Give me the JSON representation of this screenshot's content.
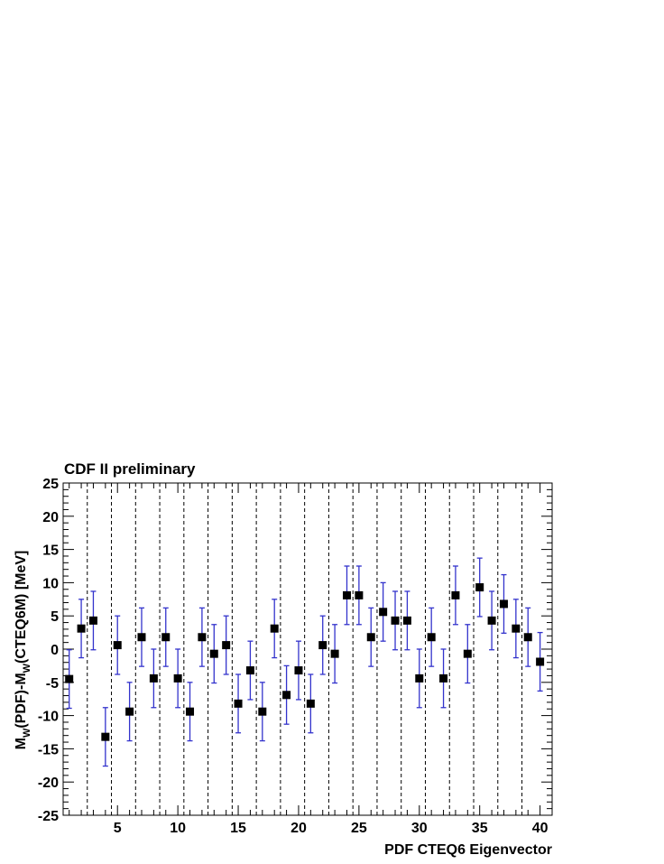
{
  "chart_data": {
    "type": "scatter",
    "title": "CDF II preliminary",
    "xlabel": "PDF CTEQ6 Eigenvector",
    "ylabel": {
      "main": "M",
      "sub1": "W",
      "mid": "(PDF)-M",
      "sub2": "W",
      "tail": "(CTEQ6M) [MeV]"
    },
    "xlim": [
      0.5,
      41
    ],
    "ylim": [
      -25,
      25
    ],
    "x_ticks": [
      5,
      10,
      15,
      20,
      25,
      30,
      35,
      40
    ],
    "y_ticks": [
      -25,
      -20,
      -15,
      -10,
      -5,
      0,
      5,
      10,
      15,
      20,
      25
    ],
    "x_tick_labels": [
      "5",
      "10",
      "15",
      "20",
      "25",
      "30",
      "35",
      "40"
    ],
    "y_tick_labels": [
      "-25",
      "-20",
      "-15",
      "-10",
      "-5",
      "0",
      "5",
      "10",
      "15",
      "20",
      "25"
    ],
    "grid": false,
    "separator_lines_x": [
      2.5,
      4.5,
      6.5,
      8.5,
      10.5,
      12.5,
      14.5,
      16.5,
      18.5,
      20.5,
      22.5,
      24.5,
      26.5,
      28.5,
      30.5,
      32.5,
      34.5,
      36.5,
      38.5
    ],
    "error": 4.4,
    "marker_color": "#000000",
    "error_bar_color": "#3333cc",
    "x": [
      1,
      2,
      3,
      4,
      5,
      6,
      7,
      8,
      9,
      10,
      11,
      12,
      13,
      14,
      15,
      16,
      17,
      18,
      19,
      20,
      21,
      22,
      23,
      24,
      25,
      26,
      27,
      28,
      29,
      30,
      31,
      32,
      33,
      34,
      35,
      36,
      37,
      38,
      39,
      40
    ],
    "y": [
      -4.5,
      3.1,
      4.3,
      -13.2,
      0.6,
      -9.4,
      1.8,
      -4.4,
      1.8,
      -4.4,
      -9.4,
      1.8,
      -0.7,
      0.6,
      -8.2,
      -3.2,
      -9.4,
      3.1,
      -6.9,
      -3.2,
      -8.2,
      0.6,
      -0.7,
      8.1,
      8.1,
      1.8,
      5.6,
      4.3,
      4.3,
      -4.4,
      1.8,
      -4.4,
      8.1,
      -0.7,
      9.3,
      4.3,
      6.8,
      3.1,
      1.8,
      -1.9
    ]
  }
}
